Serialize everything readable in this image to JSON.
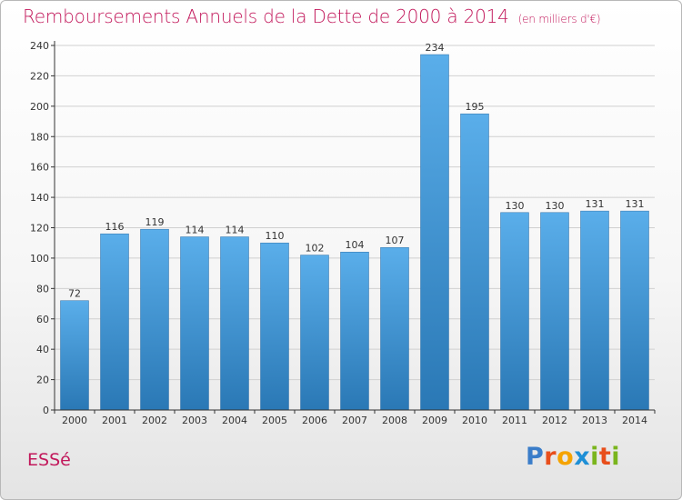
{
  "title": "Remboursements Annuels de la Dette de 2000 à 2014",
  "unit_label": "(en milliers d'€)",
  "commune": "ESSé",
  "logo": {
    "text": "Proxiti",
    "letters": [
      "P",
      "r",
      "o",
      "x",
      "i",
      "t",
      "i"
    ],
    "colors": [
      "#3a7dc9",
      "#e84e1b",
      "#f5a300",
      "#1e8fd6",
      "#7ab51d",
      "#e84e1b",
      "#7ab51d"
    ]
  },
  "colors": {
    "title": "#c2185b",
    "bar_top": "#5aaeea",
    "bar_bottom": "#2a78b5",
    "grid": "#d0d0d0",
    "axis": "#333333"
  },
  "chart_data": {
    "type": "bar",
    "categories": [
      "2000",
      "2001",
      "2002",
      "2003",
      "2004",
      "2005",
      "2006",
      "2007",
      "2008",
      "2009",
      "2010",
      "2011",
      "2012",
      "2013",
      "2014"
    ],
    "values": [
      72,
      116,
      119,
      114,
      114,
      110,
      102,
      104,
      107,
      234,
      195,
      130,
      130,
      131,
      131
    ],
    "data_labels": [
      "72",
      "116",
      "119",
      "114",
      "114",
      "110",
      "102",
      "104",
      "107",
      "234",
      "195",
      "130",
      "130",
      "131",
      "131"
    ],
    "y_ticks": [
      "0",
      "20",
      "40",
      "60",
      "80",
      "100",
      "120",
      "140",
      "160",
      "180",
      "200",
      "220",
      "240"
    ],
    "ylim": [
      0,
      240
    ],
    "grid": true,
    "legend": "none"
  }
}
